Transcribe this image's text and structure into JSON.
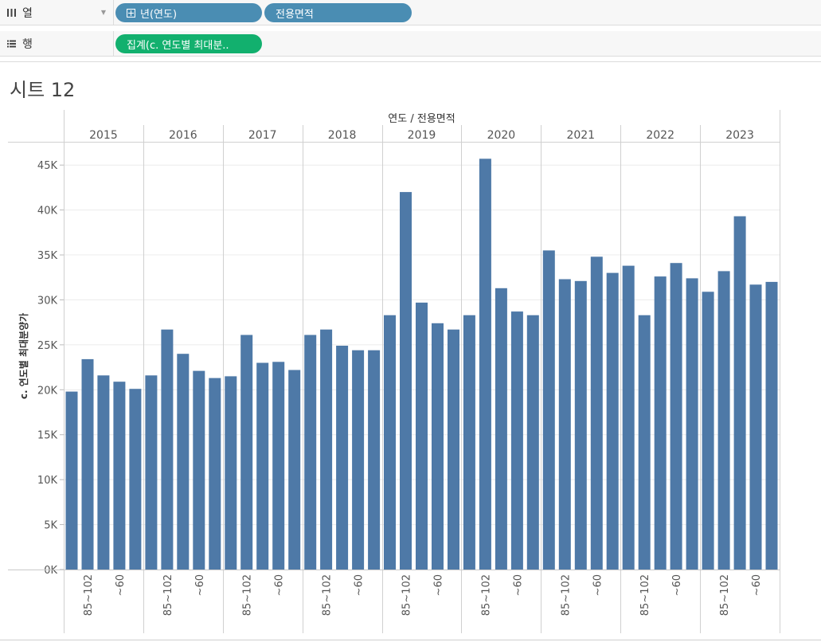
{
  "shelves": {
    "columns": {
      "label": "열",
      "pills": [
        {
          "text": "년(연도)",
          "icon": "plus-box-icon"
        },
        {
          "text": "전용면적"
        }
      ]
    },
    "rows": {
      "label": "행",
      "pills": [
        {
          "text": "집계(c. 연도별 최대분.."
        }
      ]
    }
  },
  "sheet_title": "시트 12",
  "colors": {
    "bar": "#4e79a7",
    "pill_blue": "#4a8db3",
    "pill_green": "#12b06e"
  },
  "chart_data": {
    "type": "bar",
    "title": "연도 / 전용면적",
    "ylabel": "c. 연도별 최대분양가",
    "xlabel": "",
    "ylim": [
      0,
      47500
    ],
    "yticks": [
      0,
      5000,
      10000,
      15000,
      20000,
      25000,
      30000,
      35000,
      40000,
      45000
    ],
    "ytick_labels": [
      "0K",
      "5K",
      "10K",
      "15K",
      "20K",
      "25K",
      "30K",
      "35K",
      "40K",
      "45K"
    ],
    "groups": [
      "2015",
      "2016",
      "2017",
      "2018",
      "2019",
      "2020",
      "2021",
      "2022",
      "2023"
    ],
    "categories": [
      "",
      "85~102",
      "",
      "~60",
      ""
    ],
    "series": [
      {
        "name": "2015",
        "values": [
          19800,
          23400,
          21600,
          20900,
          20100
        ]
      },
      {
        "name": "2016",
        "values": [
          21600,
          26700,
          24000,
          22100,
          21300
        ]
      },
      {
        "name": "2017",
        "values": [
          21500,
          26100,
          23000,
          23100,
          22200
        ]
      },
      {
        "name": "2018",
        "values": [
          26100,
          26700,
          24900,
          24400,
          24400
        ]
      },
      {
        "name": "2019",
        "values": [
          28300,
          42000,
          29700,
          27400,
          26700
        ]
      },
      {
        "name": "2020",
        "values": [
          28300,
          45700,
          31300,
          28700,
          28300
        ]
      },
      {
        "name": "2021",
        "values": [
          35500,
          32300,
          32100,
          34800,
          33000
        ]
      },
      {
        "name": "2022",
        "values": [
          33800,
          28300,
          32600,
          34100,
          32400
        ]
      },
      {
        "name": "2023",
        "values": [
          30900,
          33200,
          39300,
          31700,
          32000
        ]
      }
    ]
  }
}
